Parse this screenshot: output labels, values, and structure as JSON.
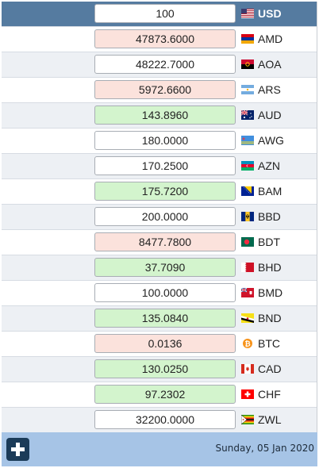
{
  "base": {
    "amount": "100",
    "code": "USD",
    "flag_icon": "flag-us-icon"
  },
  "rates": [
    {
      "code": "AMD",
      "amount": "47873.6000",
      "tone": "down",
      "flag_icon": "flag-am-icon"
    },
    {
      "code": "AOA",
      "amount": "48222.7000",
      "tone": "neutral",
      "flag_icon": "flag-ao-icon"
    },
    {
      "code": "ARS",
      "amount": "5972.6600",
      "tone": "down",
      "flag_icon": "flag-ar-icon"
    },
    {
      "code": "AUD",
      "amount": "143.8960",
      "tone": "up",
      "flag_icon": "flag-au-icon"
    },
    {
      "code": "AWG",
      "amount": "180.0000",
      "tone": "neutral",
      "flag_icon": "flag-aw-icon"
    },
    {
      "code": "AZN",
      "amount": "170.2500",
      "tone": "neutral",
      "flag_icon": "flag-az-icon"
    },
    {
      "code": "BAM",
      "amount": "175.7200",
      "tone": "up",
      "flag_icon": "flag-ba-icon"
    },
    {
      "code": "BBD",
      "amount": "200.0000",
      "tone": "neutral",
      "flag_icon": "flag-bb-icon"
    },
    {
      "code": "BDT",
      "amount": "8477.7800",
      "tone": "down",
      "flag_icon": "flag-bd-icon"
    },
    {
      "code": "BHD",
      "amount": "37.7090",
      "tone": "up",
      "flag_icon": "flag-bh-icon"
    },
    {
      "code": "BMD",
      "amount": "100.0000",
      "tone": "neutral",
      "flag_icon": "flag-bm-icon"
    },
    {
      "code": "BND",
      "amount": "135.0840",
      "tone": "up",
      "flag_icon": "flag-bn-icon"
    },
    {
      "code": "BTC",
      "amount": "0.0136",
      "tone": "down",
      "flag_icon": "bitcoin-icon"
    },
    {
      "code": "CAD",
      "amount": "130.0250",
      "tone": "up",
      "flag_icon": "flag-ca-icon"
    },
    {
      "code": "CHF",
      "amount": "97.2302",
      "tone": "up",
      "flag_icon": "flag-ch-icon"
    },
    {
      "code": "ZWL",
      "amount": "32200.0000",
      "tone": "neutral",
      "flag_icon": "flag-zw-icon"
    }
  ],
  "footer": {
    "add_icon": "plus-icon",
    "date": "Sunday, 05 Jan 2020"
  }
}
